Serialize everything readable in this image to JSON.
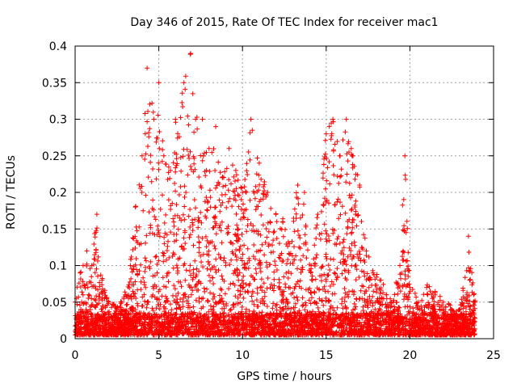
{
  "chart_data": {
    "type": "scatter",
    "title": "Day 346 of 2015, Rate Of TEC Index for receiver mac1",
    "xlabel": "GPS time / hours",
    "ylabel": "ROTI / TECUs",
    "xlim": [
      0,
      25
    ],
    "ylim": [
      0,
      0.4
    ],
    "xticks": [
      "0",
      "5",
      "10",
      "15",
      "20",
      "25"
    ],
    "yticks": [
      "0",
      "0.05",
      "0.1",
      "0.15",
      "0.2",
      "0.25",
      "0.3",
      "0.35",
      "0.4"
    ],
    "grid": true,
    "marker": "+",
    "color": "#ff0000",
    "envelope": [
      [
        0.0,
        0.05
      ],
      [
        0.3,
        0.09
      ],
      [
        0.7,
        0.12
      ],
      [
        1.0,
        0.1
      ],
      [
        1.3,
        0.17
      ],
      [
        1.6,
        0.08
      ],
      [
        2.0,
        0.05
      ],
      [
        2.5,
        0.04
      ],
      [
        3.0,
        0.06
      ],
      [
        3.3,
        0.1
      ],
      [
        3.6,
        0.18
      ],
      [
        4.0,
        0.25
      ],
      [
        4.3,
        0.37
      ],
      [
        4.7,
        0.3
      ],
      [
        5.0,
        0.35
      ],
      [
        5.3,
        0.25
      ],
      [
        5.7,
        0.23
      ],
      [
        6.0,
        0.3
      ],
      [
        6.5,
        0.35
      ],
      [
        6.9,
        0.39
      ],
      [
        7.2,
        0.3
      ],
      [
        7.6,
        0.3
      ],
      [
        8.0,
        0.26
      ],
      [
        8.4,
        0.29
      ],
      [
        8.8,
        0.22
      ],
      [
        9.2,
        0.26
      ],
      [
        9.6,
        0.23
      ],
      [
        10.0,
        0.2
      ],
      [
        10.5,
        0.3
      ],
      [
        11.0,
        0.24
      ],
      [
        11.5,
        0.2
      ],
      [
        12.0,
        0.17
      ],
      [
        12.4,
        0.16
      ],
      [
        12.8,
        0.13
      ],
      [
        13.3,
        0.21
      ],
      [
        13.7,
        0.2
      ],
      [
        14.1,
        0.1
      ],
      [
        14.5,
        0.17
      ],
      [
        15.0,
        0.28
      ],
      [
        15.4,
        0.3
      ],
      [
        15.8,
        0.25
      ],
      [
        16.2,
        0.3
      ],
      [
        16.6,
        0.25
      ],
      [
        17.0,
        0.21
      ],
      [
        17.4,
        0.12
      ],
      [
        17.8,
        0.09
      ],
      [
        18.2,
        0.08
      ],
      [
        18.6,
        0.06
      ],
      [
        19.0,
        0.05
      ],
      [
        19.4,
        0.1
      ],
      [
        19.7,
        0.25
      ],
      [
        20.0,
        0.07
      ],
      [
        20.5,
        0.05
      ],
      [
        21.0,
        0.07
      ],
      [
        21.5,
        0.06
      ],
      [
        22.0,
        0.05
      ],
      [
        22.5,
        0.04
      ],
      [
        23.0,
        0.04
      ],
      [
        23.5,
        0.14
      ],
      [
        23.9,
        0.05
      ]
    ]
  }
}
